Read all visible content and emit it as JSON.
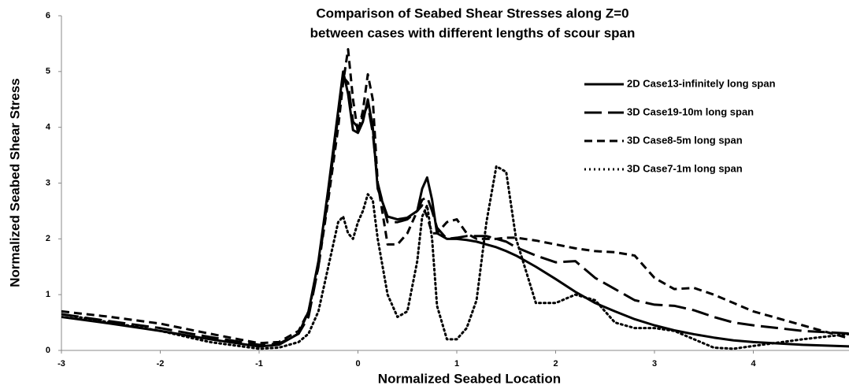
{
  "chart_data": {
    "type": "line",
    "title": [
      "Comparison of Seabed Shear Stresses along Z=0",
      "between cases with different lengths of scour span"
    ],
    "x_label": "Normalized  Seabed Location",
    "y_label": "Normalized Seabed Shear Stress",
    "x": [
      -3,
      -2.5,
      -2,
      -1.5,
      -1,
      -0.8,
      -0.6,
      -0.5,
      -0.4,
      -0.3,
      -0.2,
      -0.15,
      -0.1,
      -0.05,
      0,
      0.05,
      0.1,
      0.15,
      0.2,
      0.3,
      0.4,
      0.5,
      0.6,
      0.65,
      0.7,
      0.75,
      0.8,
      0.9,
      1.0,
      1.1,
      1.2,
      1.3,
      1.4,
      1.5,
      1.6,
      1.8,
      2.0,
      2.2,
      2.4,
      2.6,
      2.8,
      3.0,
      3.2,
      3.4,
      3.6,
      3.8,
      4.0,
      4.5,
      5.0
    ],
    "series": [
      {
        "name": "2D Case13-infinitely long span",
        "color": "#000000",
        "dash": "solid",
        "values": [
          0.6,
          0.48,
          0.35,
          0.2,
          0.07,
          0.1,
          0.3,
          0.7,
          1.6,
          2.9,
          4.3,
          5.0,
          4.6,
          3.95,
          3.9,
          4.1,
          4.5,
          4.0,
          2.9,
          2.4,
          2.35,
          2.38,
          2.5,
          2.9,
          3.1,
          2.7,
          2.1,
          2.0,
          2.0,
          1.98,
          1.95,
          1.9,
          1.85,
          1.78,
          1.7,
          1.5,
          1.28,
          1.05,
          0.85,
          0.7,
          0.56,
          0.45,
          0.36,
          0.29,
          0.23,
          0.18,
          0.15,
          0.1,
          0.07
        ]
      },
      {
        "name": "3D Case19-10m long span",
        "color": "#000000",
        "dash": "long",
        "values": [
          0.65,
          0.52,
          0.4,
          0.24,
          0.1,
          0.12,
          0.3,
          0.6,
          1.5,
          2.8,
          4.2,
          4.9,
          4.8,
          4.1,
          4.0,
          4.2,
          4.4,
          3.9,
          3.0,
          2.3,
          2.3,
          2.35,
          2.5,
          2.7,
          2.75,
          2.5,
          2.2,
          2.0,
          2.02,
          2.05,
          2.05,
          2.05,
          2.0,
          1.95,
          1.85,
          1.7,
          1.58,
          1.6,
          1.3,
          1.1,
          0.9,
          0.82,
          0.8,
          0.72,
          0.6,
          0.5,
          0.45,
          0.35,
          0.3
        ]
      },
      {
        "name": "3D Case8-5m long span",
        "color": "#000000",
        "dash": "short",
        "values": [
          0.7,
          0.6,
          0.48,
          0.3,
          0.13,
          0.15,
          0.35,
          0.7,
          1.5,
          2.7,
          4.0,
          4.8,
          5.4,
          4.5,
          3.9,
          4.3,
          4.95,
          4.5,
          3.0,
          1.9,
          1.9,
          2.1,
          2.5,
          2.6,
          2.4,
          2.1,
          2.1,
          2.3,
          2.35,
          2.1,
          2.0,
          2.0,
          2.0,
          2.02,
          2.02,
          1.97,
          1.9,
          1.83,
          1.78,
          1.76,
          1.7,
          1.3,
          1.1,
          1.12,
          1.0,
          0.85,
          0.7,
          0.45,
          0.2
        ]
      },
      {
        "name": "3D Case7-1m long span",
        "color": "#000000",
        "dash": "dotted",
        "values": [
          0.65,
          0.5,
          0.35,
          0.15,
          0.03,
          0.05,
          0.15,
          0.3,
          0.7,
          1.5,
          2.3,
          2.4,
          2.1,
          2.0,
          2.3,
          2.5,
          2.8,
          2.7,
          2.0,
          1.0,
          0.6,
          0.7,
          1.6,
          2.4,
          2.6,
          2.0,
          0.8,
          0.2,
          0.2,
          0.4,
          0.9,
          2.3,
          3.3,
          3.2,
          2.0,
          0.85,
          0.85,
          1.0,
          0.9,
          0.5,
          0.4,
          0.4,
          0.35,
          0.2,
          0.05,
          0.03,
          0.08,
          0.2,
          0.3
        ]
      }
    ],
    "xlim": [
      -3,
      5
    ],
    "xticks": [
      -3,
      -2,
      -1,
      0,
      1,
      2,
      3,
      4
    ],
    "ylim": [
      0,
      6
    ],
    "yticks": [
      0,
      1,
      2,
      3,
      4,
      5,
      6
    ],
    "grid": false,
    "legend": "upper right"
  }
}
